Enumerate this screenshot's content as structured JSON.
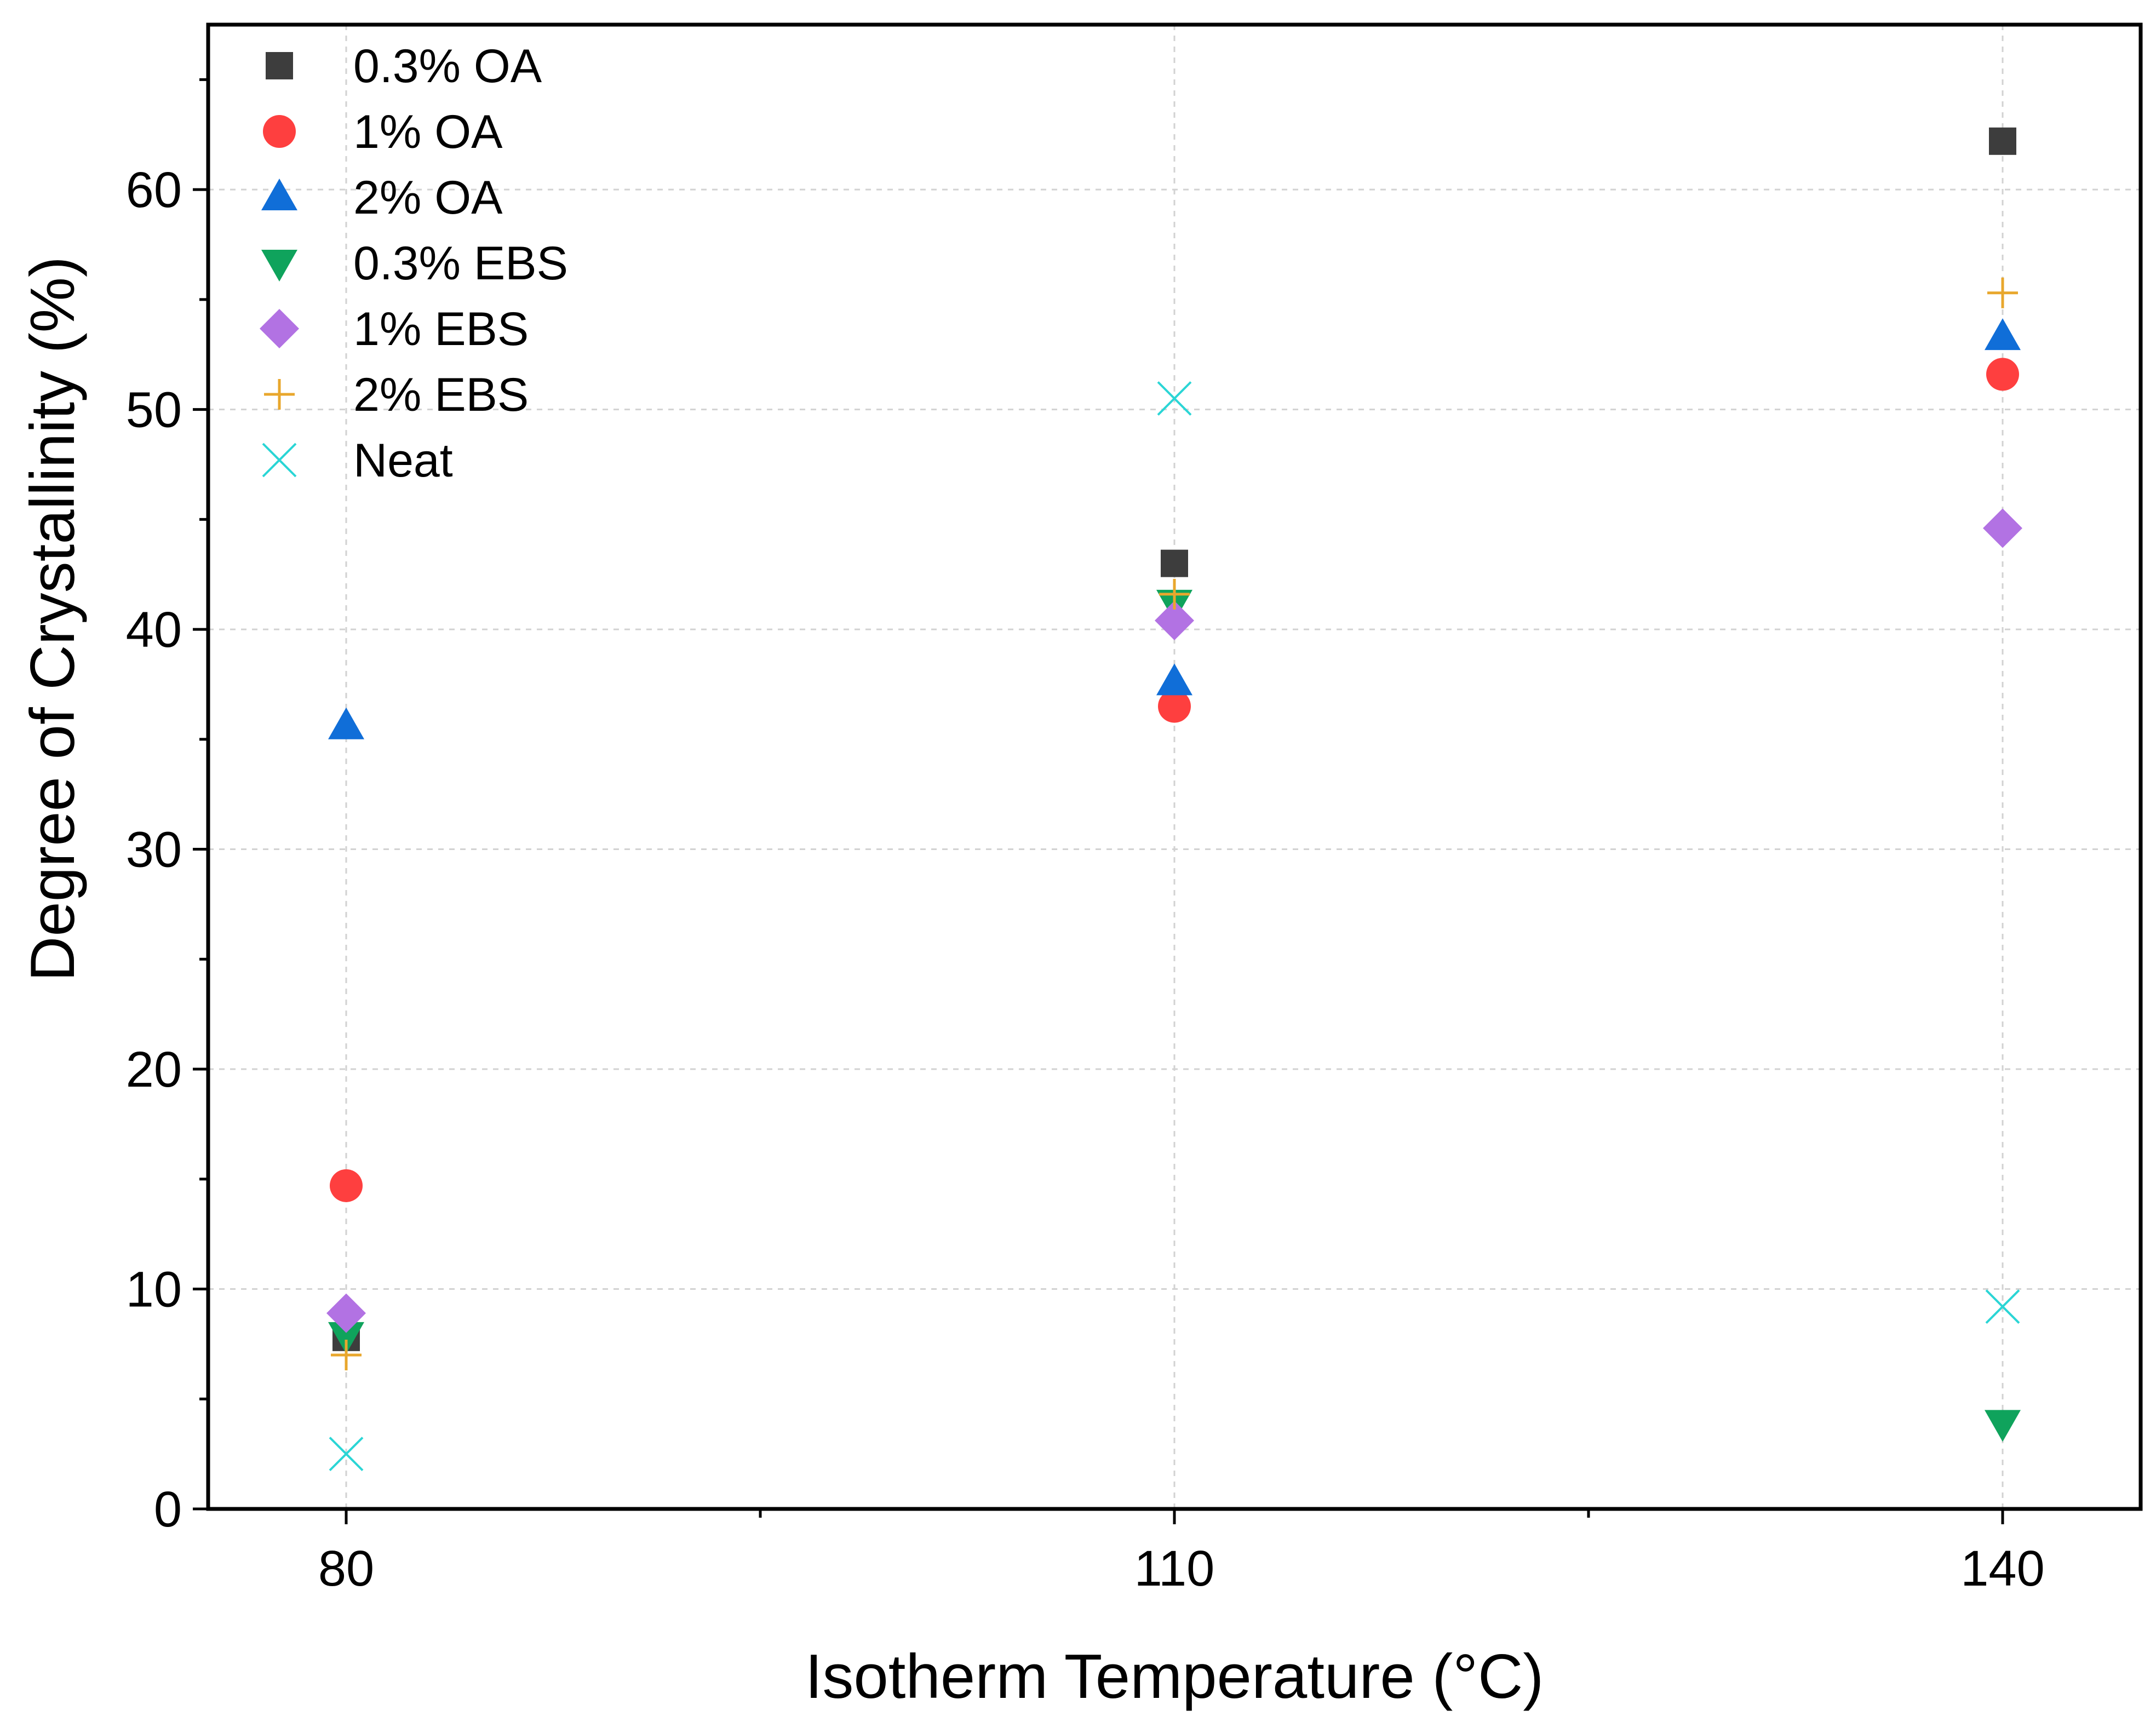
{
  "chart_data": {
    "type": "scatter",
    "title": "",
    "xlabel": "Isotherm Temperature (°C)",
    "ylabel": "Degree of Crystallinity (%)",
    "x": [
      80,
      110,
      140
    ],
    "x_ticks": [
      80,
      110,
      140
    ],
    "x_tick_labels": [
      "80",
      "110",
      "140"
    ],
    "xlim": [
      75,
      145
    ],
    "y_ticks": [
      0,
      10,
      20,
      30,
      40,
      50,
      60
    ],
    "y_tick_labels": [
      "0",
      "10",
      "20",
      "30",
      "40",
      "50",
      "60"
    ],
    "ylim": [
      0,
      67.5
    ],
    "grid": true,
    "legend_position": "top-left",
    "series": [
      {
        "name": "0.3% OA",
        "marker": "square",
        "color": "#3d3d3d",
        "values": [
          7.8,
          43.0,
          62.2
        ]
      },
      {
        "name": "1% OA",
        "marker": "circle",
        "color": "#fe3f3f",
        "values": [
          14.7,
          36.5,
          51.6
        ]
      },
      {
        "name": "2% OA",
        "marker": "triangle-up",
        "color": "#106ed8",
        "values": [
          35.6,
          37.6,
          53.3
        ]
      },
      {
        "name": "0.3% EBS",
        "marker": "triangle-down",
        "color": "#0fa35c",
        "values": [
          7.9,
          41.2,
          3.9
        ]
      },
      {
        "name": "1% EBS",
        "marker": "diamond",
        "color": "#b272e3",
        "values": [
          8.9,
          40.4,
          44.6
        ]
      },
      {
        "name": "2% EBS",
        "marker": "plus",
        "color": "#e8a72d",
        "values": [
          7.0,
          41.6,
          55.3
        ]
      },
      {
        "name": "Neat",
        "marker": "x",
        "color": "#2ad5d5",
        "values": [
          2.5,
          50.5,
          9.2
        ]
      }
    ]
  }
}
